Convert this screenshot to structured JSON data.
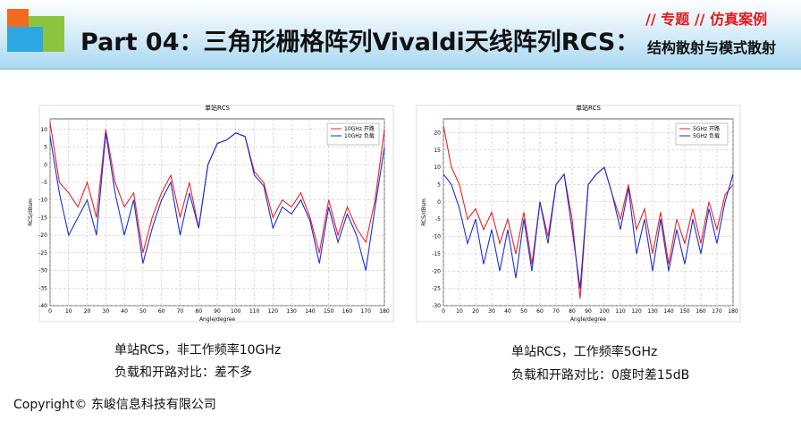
{
  "header": {
    "tag": "// 专题 // 仿真案例",
    "title": "Part 04：三角形栅格阵列Vivaldi天线阵列RCS：",
    "subtitle": "结构散射与模式散射"
  },
  "captions": [
    [
      "单站RCS，非工作频率10GHz",
      "负载和开路对比：差不多"
    ],
    [
      "单站RCS，工作频率5GHz",
      "负载和开路对比：0度时差15dB"
    ]
  ],
  "copyright": "Copyright© 东峻信息科技有限公司",
  "chart_data": [
    {
      "type": "line",
      "title": "单站RCS",
      "xlabel": "Angle/degree",
      "ylabel": "RCS/dBsm",
      "grid": true,
      "legend": "upper right",
      "x": [
        0,
        5,
        10,
        15,
        20,
        25,
        30,
        35,
        40,
        45,
        50,
        55,
        60,
        65,
        70,
        75,
        80,
        85,
        90,
        95,
        100,
        105,
        110,
        115,
        120,
        125,
        130,
        135,
        140,
        145,
        150,
        155,
        160,
        165,
        170,
        175,
        180
      ],
      "xlim": [
        0,
        180
      ],
      "xticks": [
        0,
        10,
        20,
        30,
        40,
        50,
        60,
        70,
        80,
        90,
        100,
        110,
        120,
        130,
        140,
        150,
        160,
        170,
        180
      ],
      "ylim": [
        -40,
        13
      ],
      "yticks": [
        -40,
        -35,
        -30,
        -25,
        -20,
        -15,
        -10,
        -5,
        0,
        5,
        10
      ],
      "series": [
        {
          "name": "10GHz 开路",
          "color": "#e8232a",
          "values": [
            12,
            -5,
            -8,
            -12,
            -5,
            -15,
            10,
            -5,
            -12,
            -8,
            -25,
            -15,
            -8,
            -3,
            -15,
            -5,
            -18,
            0,
            6,
            7,
            9,
            8,
            -2,
            -5,
            -15,
            -10,
            -12,
            -8,
            -15,
            -25,
            -10,
            -20,
            -12,
            -18,
            -22,
            -10,
            10
          ]
        },
        {
          "name": "10GHz 负载",
          "color": "#1a2fd6",
          "values": [
            8,
            -8,
            -20,
            -15,
            -10,
            -20,
            9,
            -8,
            -20,
            -10,
            -28,
            -18,
            -10,
            -5,
            -20,
            -8,
            -18,
            0,
            6,
            7,
            9,
            8,
            -3,
            -6,
            -18,
            -12,
            -14,
            -10,
            -16,
            -28,
            -12,
            -22,
            -14,
            -20,
            -30,
            -12,
            5
          ]
        }
      ]
    },
    {
      "type": "line",
      "title": "单站RCS",
      "xlabel": "Angle/degree",
      "ylabel": "RCS/dBsm",
      "grid": true,
      "legend": "upper right",
      "x": [
        0,
        5,
        10,
        15,
        20,
        25,
        30,
        35,
        40,
        45,
        50,
        55,
        60,
        65,
        70,
        75,
        80,
        85,
        90,
        95,
        100,
        105,
        110,
        115,
        120,
        125,
        130,
        135,
        140,
        145,
        150,
        155,
        160,
        165,
        170,
        175,
        180
      ],
      "xlim": [
        0,
        180
      ],
      "xticks": [
        0,
        10,
        20,
        30,
        40,
        50,
        60,
        70,
        80,
        90,
        100,
        110,
        120,
        130,
        140,
        150,
        160,
        170,
        180
      ],
      "ylim": [
        -30,
        24
      ],
      "yticks": [
        -30,
        -25,
        -20,
        -15,
        -10,
        -5,
        0,
        5,
        10,
        15,
        20
      ],
      "series": [
        {
          "name": "5GHz 开路",
          "color": "#e8232a",
          "values": [
            22,
            10,
            5,
            -5,
            -2,
            -8,
            -3,
            -12,
            -5,
            -15,
            -3,
            -18,
            0,
            -10,
            5,
            8,
            -5,
            -28,
            5,
            8,
            10,
            2,
            -5,
            5,
            -8,
            -2,
            -15,
            -3,
            -18,
            -5,
            -12,
            -2,
            -12,
            0,
            -8,
            2,
            5
          ]
        },
        {
          "name": "5GHz 负载",
          "color": "#1a2fd6",
          "values": [
            8,
            5,
            -2,
            -12,
            -5,
            -18,
            -8,
            -20,
            -8,
            -22,
            -5,
            -20,
            0,
            -12,
            5,
            8,
            -8,
            -25,
            5,
            8,
            10,
            2,
            -8,
            4,
            -15,
            -5,
            -20,
            -5,
            -20,
            -8,
            -18,
            -5,
            -15,
            -2,
            -12,
            0,
            8
          ]
        }
      ]
    }
  ]
}
